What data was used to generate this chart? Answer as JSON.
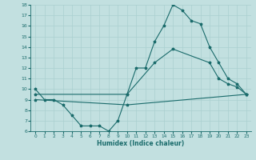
{
  "xlabel": "Humidex (Indice chaleur)",
  "xlim": [
    -0.5,
    23.5
  ],
  "ylim": [
    6,
    18
  ],
  "yticks": [
    6,
    7,
    8,
    9,
    10,
    11,
    12,
    13,
    14,
    15,
    16,
    17,
    18
  ],
  "xticks": [
    0,
    1,
    2,
    3,
    4,
    5,
    6,
    7,
    8,
    9,
    10,
    11,
    12,
    13,
    14,
    15,
    16,
    17,
    18,
    19,
    20,
    21,
    22,
    23
  ],
  "bg_color": "#c2e0e0",
  "line_color": "#1a6b6b",
  "grid_color": "#aad0d0",
  "line1_x": [
    0,
    1,
    2,
    3,
    4,
    5,
    6,
    7,
    8,
    9,
    10,
    11,
    12,
    13,
    14,
    15,
    16,
    17,
    18,
    19,
    20,
    21,
    22,
    23
  ],
  "line1_y": [
    10,
    9,
    9,
    8.5,
    7.5,
    6.5,
    6.5,
    6.5,
    6.0,
    7.0,
    9.5,
    12,
    12,
    14.5,
    16,
    18,
    17.5,
    16.5,
    16.2,
    14,
    12.5,
    11,
    10.5,
    9.5
  ],
  "line2_x": [
    0,
    10,
    13,
    15,
    19,
    20,
    21,
    22,
    23
  ],
  "line2_y": [
    9.5,
    9.5,
    12.5,
    13.8,
    12.5,
    11.0,
    10.5,
    10.2,
    9.5
  ],
  "line3_x": [
    0,
    10,
    23
  ],
  "line3_y": [
    9.0,
    8.5,
    9.5
  ]
}
